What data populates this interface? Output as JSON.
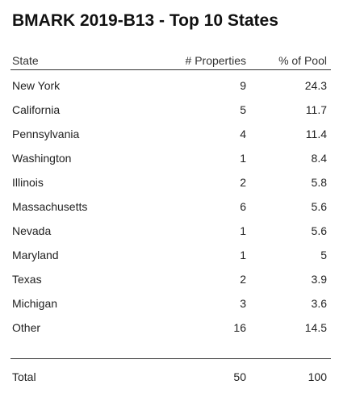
{
  "title": "BMARK 2019-B13 - Top 10 States",
  "table": {
    "columns": [
      "State",
      "# Properties",
      "% of Pool"
    ],
    "rows": [
      {
        "state": "New York",
        "properties": "9",
        "pool": "24.3"
      },
      {
        "state": "California",
        "properties": "5",
        "pool": "11.7"
      },
      {
        "state": "Pennsylvania",
        "properties": "4",
        "pool": "11.4"
      },
      {
        "state": "Washington",
        "properties": "1",
        "pool": "8.4"
      },
      {
        "state": "Illinois",
        "properties": "2",
        "pool": "5.8"
      },
      {
        "state": "Massachusetts",
        "properties": "6",
        "pool": "5.6"
      },
      {
        "state": "Nevada",
        "properties": "1",
        "pool": "5.6"
      },
      {
        "state": "Maryland",
        "properties": "1",
        "pool": "5"
      },
      {
        "state": "Texas",
        "properties": "2",
        "pool": "3.9"
      },
      {
        "state": "Michigan",
        "properties": "3",
        "pool": "3.6"
      },
      {
        "state": "Other",
        "properties": "16",
        "pool": "14.5"
      }
    ],
    "total": {
      "label": "Total",
      "properties": "50",
      "pool": "100"
    }
  }
}
